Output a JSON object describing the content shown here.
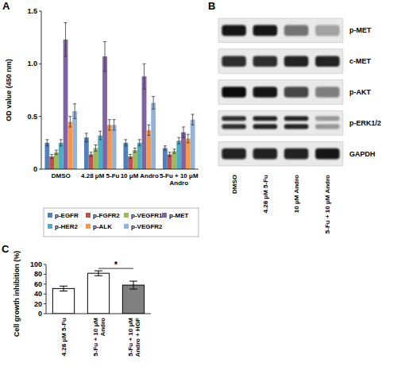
{
  "chart_data": [
    {
      "type": "bar",
      "panel_label": "A",
      "y_label": "OD value (450 nm)",
      "categories": [
        "DMSO",
        "4.28 μM 5-Fu",
        "10 μM Andro",
        "5-Fu + 10 μM Andro"
      ],
      "series": [
        {
          "name": "p-EGFR",
          "color": "#4f81bd",
          "values": [
            0.25,
            0.3,
            0.25,
            0.2
          ],
          "errors": [
            0.03,
            0.04,
            0.03,
            0.02
          ]
        },
        {
          "name": "p-FGFR2",
          "color": "#c0504d",
          "values": [
            0.12,
            0.14,
            0.12,
            0.14
          ],
          "errors": [
            0.02,
            0.02,
            0.02,
            0.02
          ]
        },
        {
          "name": "p-VEGFR1",
          "color": "#9bbb59",
          "values": [
            0.16,
            0.2,
            0.18,
            0.17
          ],
          "errors": [
            0.02,
            0.03,
            0.02,
            0.02
          ]
        },
        {
          "name": "p-HER2",
          "color": "#4bacc6",
          "values": [
            0.25,
            0.32,
            0.25,
            0.27
          ],
          "errors": [
            0.03,
            0.04,
            0.03,
            0.03
          ]
        },
        {
          "name": "p-MET",
          "color": "#8064a2",
          "values": [
            1.23,
            1.07,
            0.88,
            0.35
          ],
          "errors": [
            0.16,
            0.14,
            0.12,
            0.05
          ]
        },
        {
          "name": "p-ALK",
          "color": "#f79646",
          "values": [
            0.45,
            0.42,
            0.37,
            0.29
          ],
          "errors": [
            0.05,
            0.05,
            0.05,
            0.04
          ]
        },
        {
          "name": "p-VEGFR2",
          "color": "#95b3d7",
          "values": [
            0.55,
            0.42,
            0.63,
            0.47
          ],
          "errors": [
            0.07,
            0.05,
            0.06,
            0.05
          ]
        }
      ],
      "ylim": [
        0,
        1.5
      ],
      "yticks": [
        0,
        0.5,
        {
          "value": 1,
          "label": "1.0"
        },
        1.5
      ],
      "grid": false,
      "legend": "bottom"
    },
    {
      "type": "bar",
      "panel_label": "C",
      "y_label": "Cell growth inhibition (%)",
      "categories": [
        "4.28 μM 5-Fu",
        "5-Fu + 10 μM Andro",
        "5-Fu + 10 μM Andro + HGF"
      ],
      "values": [
        51,
        82,
        58
      ],
      "errors": [
        5,
        5,
        8
      ],
      "colors": [
        "#ffffff",
        "#ffffff",
        "#808080"
      ],
      "ylim": [
        0,
        100
      ],
      "yticks": [
        0,
        20,
        40,
        60,
        80,
        100
      ],
      "grid": false,
      "significance": [
        {
          "between": [
            1,
            2
          ],
          "label": "*"
        }
      ]
    }
  ],
  "blot": {
    "panel_label": "B",
    "lanes": [
      "DMSO",
      "4.28 μM 5-Fu",
      "10 μM Andro",
      "5-Fu + 10 μM Andro"
    ],
    "rows": [
      {
        "label": "p-MET",
        "intensity": [
          0.9,
          0.9,
          0.5,
          0.3
        ]
      },
      {
        "label": "c-MET",
        "intensity": [
          0.8,
          0.8,
          0.85,
          0.85
        ]
      },
      {
        "label": "p-AKT",
        "intensity": [
          0.95,
          0.9,
          0.7,
          0.45
        ]
      },
      {
        "label": "p-ERK1/2",
        "intensity": [
          0.8,
          0.85,
          0.85,
          0.35
        ],
        "doublet": true
      },
      {
        "label": "GAPDH",
        "intensity": [
          0.85,
          0.85,
          0.85,
          0.9
        ]
      }
    ]
  }
}
